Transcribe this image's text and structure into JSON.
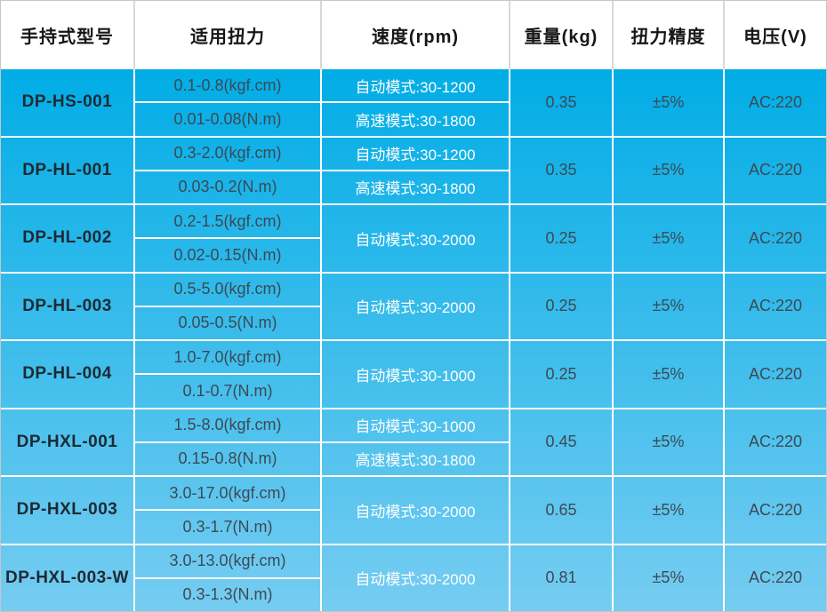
{
  "colors": {
    "body_gradient_top": "#01ade6",
    "body_gradient_bottom": "#76ccf1",
    "separator": "#ffffff",
    "outer_border": "#c6c6c6",
    "header_text": "#161616",
    "model_text": "#1d2a33",
    "value_text": "#3c4a54",
    "speed_text": "#ffffff"
  },
  "table": {
    "headers": [
      {
        "label": "手持式型号"
      },
      {
        "label": "适用扭力"
      },
      {
        "label": "速度(rpm)"
      },
      {
        "label": "重量(kg)"
      },
      {
        "label": "扭力精度"
      },
      {
        "label": "电压(V)"
      }
    ],
    "rows": [
      {
        "model": "DP-HS-001",
        "torque_kgf": "0.1-0.8(kgf.cm)",
        "torque_nm": "0.01-0.08(N.m)",
        "speed_auto": "自动模式:30-1200",
        "speed_high": "高速模式:30-1800",
        "weight": "0.35",
        "precision": "±5%",
        "voltage": "AC:220"
      },
      {
        "model": "DP-HL-001",
        "torque_kgf": "0.3-2.0(kgf.cm)",
        "torque_nm": "0.03-0.2(N.m)",
        "speed_auto": "自动模式:30-1200",
        "speed_high": "高速模式:30-1800",
        "weight": "0.35",
        "precision": "±5%",
        "voltage": "AC:220"
      },
      {
        "model": "DP-HL-002",
        "torque_kgf": "0.2-1.5(kgf.cm)",
        "torque_nm": "0.02-0.15(N.m)",
        "speed_auto": "自动模式:30-2000",
        "speed_high": null,
        "weight": "0.25",
        "precision": "±5%",
        "voltage": "AC:220"
      },
      {
        "model": "DP-HL-003",
        "torque_kgf": "0.5-5.0(kgf.cm)",
        "torque_nm": "0.05-0.5(N.m)",
        "speed_auto": "自动模式:30-2000",
        "speed_high": null,
        "weight": "0.25",
        "precision": "±5%",
        "voltage": "AC:220"
      },
      {
        "model": "DP-HL-004",
        "torque_kgf": "1.0-7.0(kgf.cm)",
        "torque_nm": "0.1-0.7(N.m)",
        "speed_auto": "自动模式:30-1000",
        "speed_high": null,
        "weight": "0.25",
        "precision": "±5%",
        "voltage": "AC:220"
      },
      {
        "model": "DP-HXL-001",
        "torque_kgf": "1.5-8.0(kgf.cm)",
        "torque_nm": "0.15-0.8(N.m)",
        "speed_auto": "自动模式:30-1000",
        "speed_high": "高速模式:30-1800",
        "weight": "0.45",
        "precision": "±5%",
        "voltage": "AC:220"
      },
      {
        "model": "DP-HXL-003",
        "torque_kgf": "3.0-17.0(kgf.cm)",
        "torque_nm": "0.3-1.7(N.m)",
        "speed_auto": "自动模式:30-2000",
        "speed_high": null,
        "weight": "0.65",
        "precision": "±5%",
        "voltage": "AC:220"
      },
      {
        "model": "DP-HXL-003-W",
        "torque_kgf": "3.0-13.0(kgf.cm)",
        "torque_nm": "0.3-1.3(N.m)",
        "speed_auto": "自动模式:30-2000",
        "speed_high": null,
        "weight": "0.81",
        "precision": "±5%",
        "voltage": "AC:220"
      }
    ]
  }
}
